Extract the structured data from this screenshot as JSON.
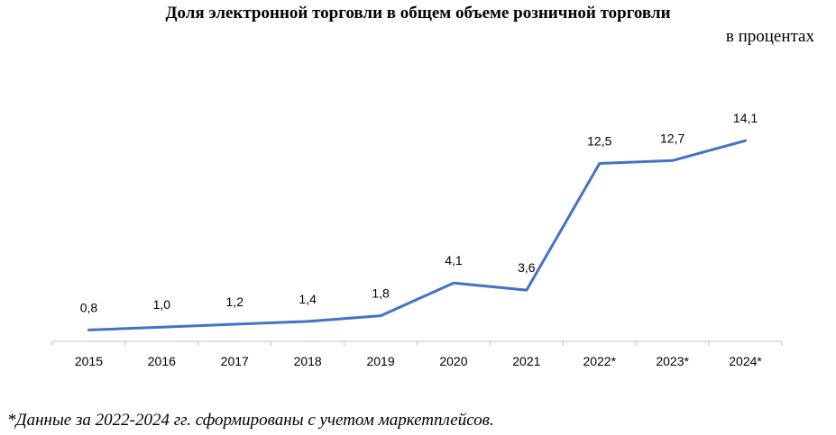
{
  "chart_data": {
    "type": "line",
    "title": "Доля электронной торговли в общем объеме розничной торговли",
    "subtitle": "в процентах",
    "categories": [
      "2015",
      "2016",
      "2017",
      "2018",
      "2019",
      "2020",
      "2021",
      "2022*",
      "2023*",
      "2024*"
    ],
    "series": [
      {
        "values": [
          0.8,
          1.0,
          1.2,
          1.4,
          1.8,
          4.1,
          3.6,
          12.5,
          12.7,
          14.1
        ],
        "labels": [
          "0,8",
          "1,0",
          "1,2",
          "1,4",
          "1,8",
          "4,1",
          "3,6",
          "12,5",
          "12,7",
          "14,1"
        ],
        "color": "#4472C4"
      }
    ],
    "ylim": [
      0,
      16
    ],
    "grid": false,
    "legend": "none"
  },
  "footnote": "*Данные за 2022-2024 гг. сформированы с учетом маркетплейсов."
}
